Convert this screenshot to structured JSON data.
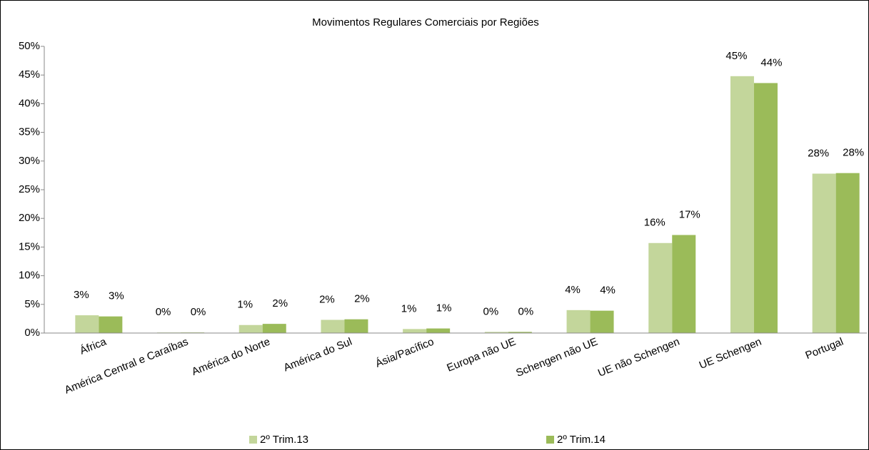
{
  "chart_data": {
    "type": "bar",
    "title": "Movimentos Regulares Comerciais por Regiões",
    "categories": [
      "África",
      "América Central e Caraíbas",
      "América do Norte",
      "América do Sul",
      "Ásia/Pacífico",
      "Europa não UE",
      "Schengen não UE",
      "UE não Schengen",
      "UE Schengen",
      "Portugal"
    ],
    "series": [
      {
        "name": "2º Trim.13",
        "color": "#c3d69b",
        "values": [
          3.1,
          0.1,
          1.4,
          2.3,
          0.7,
          0.2,
          4.0,
          15.7,
          44.8,
          27.8
        ],
        "value_labels": [
          "3%",
          "0%",
          "1%",
          "2%",
          "1%",
          "0%",
          "4%",
          "16%",
          "45%",
          "28%"
        ]
      },
      {
        "name": "2º Trim.14",
        "color": "#9bbb59",
        "values": [
          2.9,
          0.1,
          1.6,
          2.4,
          0.8,
          0.2,
          3.9,
          17.1,
          43.6,
          27.9
        ],
        "value_labels": [
          "3%",
          "0%",
          "2%",
          "2%",
          "1%",
          "0%",
          "4%",
          "17%",
          "44%",
          "28%"
        ]
      }
    ],
    "ylim": [
      0,
      50
    ],
    "yticks": [
      {
        "value": 0,
        "label": "0%"
      },
      {
        "value": 5,
        "label": "5%"
      },
      {
        "value": 10,
        "label": "10%"
      },
      {
        "value": 15,
        "label": "15%"
      },
      {
        "value": 20,
        "label": "20%"
      },
      {
        "value": 25,
        "label": "25%"
      },
      {
        "value": 30,
        "label": "30%"
      },
      {
        "value": 35,
        "label": "35%"
      },
      {
        "value": 40,
        "label": "40%"
      },
      {
        "value": 45,
        "label": "45%"
      },
      {
        "value": 50,
        "label": "50%"
      }
    ],
    "legend": "bottom"
  }
}
